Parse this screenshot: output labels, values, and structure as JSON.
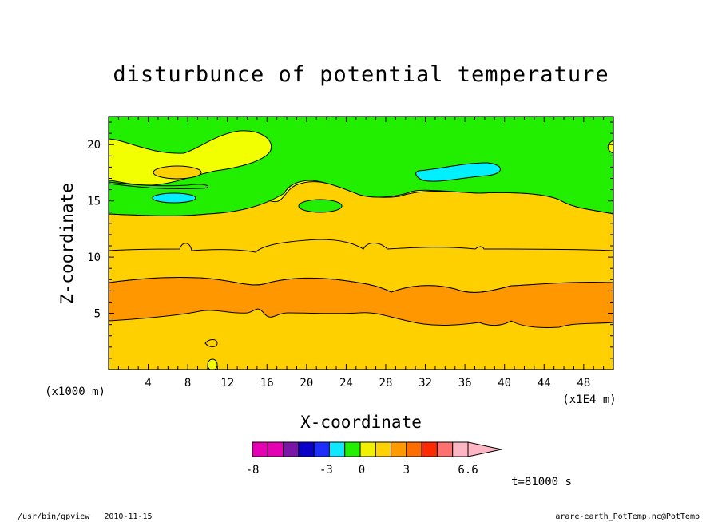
{
  "chart_data": {
    "type": "heatmap",
    "title": "disturbunce of potential temperature",
    "xlabel": "X-coordinate",
    "ylabel": "Z-coordinate",
    "x_unit_label": "(x1E4 m)",
    "y_unit_label": "(x1000 m)",
    "xlim": [
      0,
      51
    ],
    "ylim": [
      0,
      22.5
    ],
    "xticks": [
      "4",
      "8",
      "12",
      "16",
      "20",
      "24",
      "28",
      "32",
      "36",
      "40",
      "44",
      "48"
    ],
    "yticks": [
      "5",
      "10",
      "15",
      "20"
    ],
    "colorbar": {
      "colors": [
        "#e600b3",
        "#e600b3",
        "#7a16a8",
        "#0a00c8",
        "#1f2eff",
        "#0fe6ff",
        "#23f000",
        "#f2f200",
        "#ffd200",
        "#ff9a00",
        "#ff6e00",
        "#ff2a00",
        "#ff7070",
        "#ffb6c4"
      ],
      "tick_labels": [
        "-8",
        "-3",
        "0",
        "3",
        "6.6"
      ]
    },
    "bands": [
      {
        "name": "deep-orange",
        "color": "#ff9800",
        "z_range": [
          4.5,
          8.2
        ]
      },
      {
        "name": "orange",
        "color": "#ffd000",
        "z_range": [
          0,
          4.5
        ]
      },
      {
        "name": "orange-upper",
        "color": "#ffd000",
        "z_range": [
          8.2,
          10.8
        ]
      },
      {
        "name": "yellow",
        "color": "#f2ff00",
        "z_range": [
          10.8,
          16.3
        ]
      },
      {
        "name": "green",
        "color": "#22ee00",
        "z_range": [
          16.3,
          22.5
        ]
      }
    ],
    "features": [
      {
        "name": "cyan-patch-upper",
        "color": "#00f0ff",
        "x": 36,
        "z": 17.5
      },
      {
        "name": "cyan-patch-left",
        "color": "#00f0ff",
        "x": 6.5,
        "z": 15.5
      },
      {
        "name": "orange-patch-left",
        "color": "#ffd000",
        "x": 7,
        "z": 18
      },
      {
        "name": "green-patch-mid",
        "color": "#22ee00",
        "x": 22,
        "z": 14.8
      }
    ]
  },
  "time_label": "t=81000 s",
  "footer": {
    "left": "/usr/bin/gpview   2010-11-15",
    "right": "arare-earth_PotTemp.nc@PotTemp"
  }
}
